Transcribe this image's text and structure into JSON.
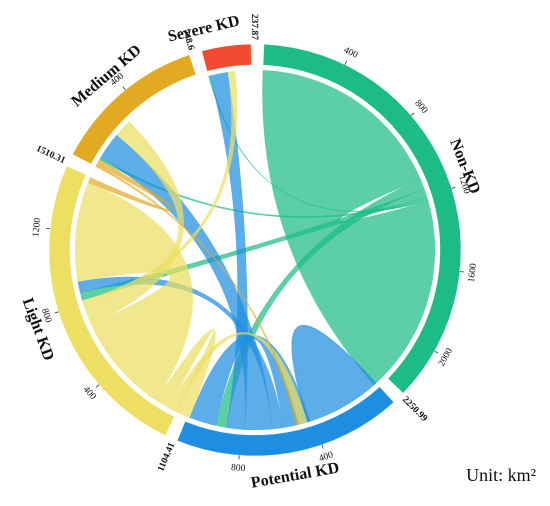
{
  "chart_data": {
    "type": "chord",
    "title": "",
    "unit": "Unit: km²",
    "groups": [
      {
        "name": "Non-KD",
        "color": "#1dbc85",
        "total": 2250.99,
        "ticks": [
          400,
          800,
          1200,
          1600,
          2000
        ],
        "end_label": "2250.99"
      },
      {
        "name": "Potential KD",
        "color": "#1e8ee0",
        "total": 1104.41,
        "ticks": [
          400,
          800
        ],
        "end_label": "1104.41"
      },
      {
        "name": "Light KD",
        "color": "#ecdf62",
        "total": 1510.31,
        "ticks": [
          400,
          800,
          1200
        ],
        "end_label": "1510.31"
      },
      {
        "name": "Medium KD",
        "color": "#e2aa22",
        "total": 748.6,
        "ticks": [
          400
        ],
        "end_label": "748.6"
      },
      {
        "name": "Severe KD",
        "color": "#f24b31",
        "total": 237.87,
        "ticks": [],
        "end_label": "237.87"
      }
    ],
    "flows": [
      {
        "from": "Non-KD",
        "to": "Non-KD",
        "value": 1100
      },
      {
        "from": "Non-KD",
        "to": "Potential KD",
        "value": 60
      },
      {
        "from": "Non-KD",
        "to": "Light KD",
        "value": 45
      },
      {
        "from": "Non-KD",
        "to": "Medium KD",
        "value": 15
      },
      {
        "from": "Non-KD",
        "to": "Severe KD",
        "value": 8
      },
      {
        "from": "Potential KD",
        "to": "Non-KD",
        "value": 420
      },
      {
        "from": "Potential KD",
        "to": "Potential KD",
        "value": 150
      },
      {
        "from": "Potential KD",
        "to": "Light KD",
        "value": 60
      },
      {
        "from": "Potential KD",
        "to": "Medium KD",
        "value": 150
      },
      {
        "from": "Potential KD",
        "to": "Severe KD",
        "value": 100
      },
      {
        "from": "Light KD",
        "to": "Non-KD",
        "value": 50
      },
      {
        "from": "Light KD",
        "to": "Potential KD",
        "value": 80
      },
      {
        "from": "Light KD",
        "to": "Light KD",
        "value": 550
      },
      {
        "from": "Light KD",
        "to": "Medium KD",
        "value": 100
      },
      {
        "from": "Light KD",
        "to": "Severe KD",
        "value": 40
      },
      {
        "from": "Medium KD",
        "to": "Non-KD",
        "value": 12
      },
      {
        "from": "Medium KD",
        "to": "Light KD",
        "value": 30
      }
    ]
  }
}
